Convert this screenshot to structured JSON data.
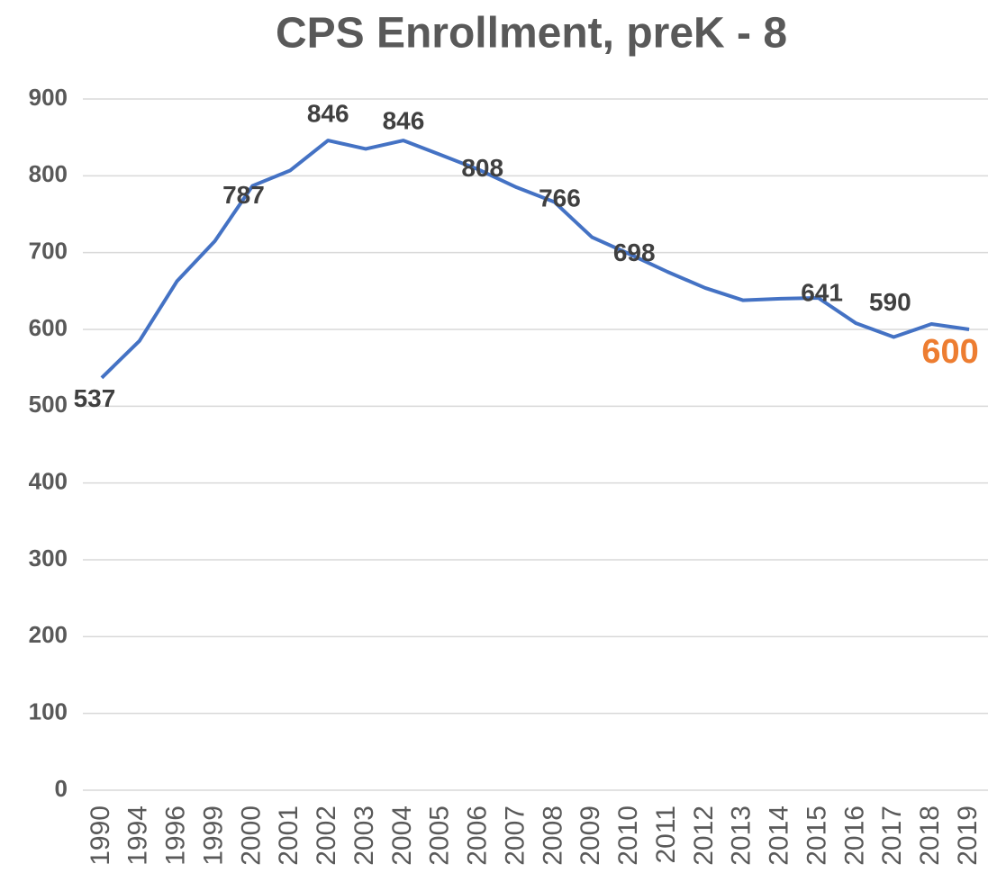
{
  "chart_data": {
    "type": "line",
    "title": "CPS Enrollment, preK - 8",
    "categories": [
      "1990",
      "1994",
      "1996",
      "1999",
      "2000",
      "2001",
      "2002",
      "2003",
      "2004",
      "2005",
      "2006",
      "2007",
      "2008",
      "2009",
      "2010",
      "2011",
      "2012",
      "2013",
      "2014",
      "2015",
      "2016",
      "2017",
      "2018",
      "2019"
    ],
    "series": [
      {
        "name": "Enrollment",
        "color": "#4472c4",
        "values": [
          537,
          585,
          663,
          715,
          787,
          807,
          846,
          835,
          846,
          827,
          808,
          785,
          766,
          720,
          698,
          675,
          654,
          638,
          640,
          641,
          608,
          590,
          607,
          600
        ]
      }
    ],
    "data_labels_at": [
      0,
      4,
      6,
      8,
      10,
      12,
      14,
      19,
      21,
      23
    ],
    "highlight_index": 23,
    "highlight_color": "#ed7d31",
    "ylim": [
      0,
      900
    ],
    "yticks": [
      0,
      100,
      200,
      300,
      400,
      500,
      600,
      700,
      800,
      900
    ],
    "grid": true
  }
}
